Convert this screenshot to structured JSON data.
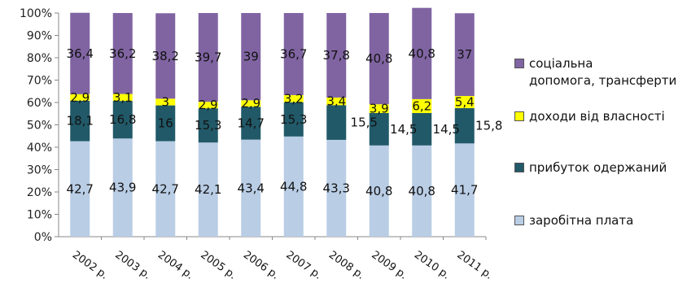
{
  "chart_data": {
    "type": "bar",
    "stacked": true,
    "percent_stacked": true,
    "categories": [
      "2002 р.",
      "2003 р.",
      "2004 р.",
      "2005 р.",
      "2006 р.",
      "2007 р.",
      "2008 р.",
      "2009 р.",
      "2010 р.",
      "2011 р."
    ],
    "series": [
      {
        "name": "заробітна плата",
        "color": "#b9cde5",
        "values": [
          42.7,
          43.9,
          42.7,
          42.1,
          43.4,
          44.8,
          43.3,
          40.8,
          40.8,
          41.7
        ]
      },
      {
        "name": "прибуток одержаний",
        "color": "#215968",
        "values": [
          18.1,
          16.8,
          16,
          15.3,
          14.7,
          15.3,
          15.5,
          14.5,
          14.5,
          15.8
        ]
      },
      {
        "name": "доходи від власності",
        "color": "#ffff00",
        "values": [
          2.9,
          3.1,
          3,
          2.9,
          2.9,
          3.2,
          3.4,
          3.9,
          6.2,
          5.4
        ]
      },
      {
        "name": "соціальна\nдопомога, трансферти",
        "color": "#8064a2",
        "values": [
          36.4,
          36.2,
          38.2,
          39.7,
          39,
          36.7,
          37.8,
          40.8,
          40.8,
          37
        ]
      }
    ],
    "value_labels": [
      [
        "42,7",
        "43,9",
        "42,7",
        "42,1",
        "43,4",
        "44,8",
        "43,3",
        "40,8",
        "40,8",
        "41,7"
      ],
      [
        "18,1",
        "16,8",
        "16",
        "15,3",
        "14,7",
        "15,3",
        "15,5",
        "14,5",
        "14,5",
        "15,8"
      ],
      [
        "2,9",
        "3,1",
        "3",
        "2,9",
        "2,9",
        "3,2",
        "3,4",
        "3,9",
        "6,2",
        "5,4"
      ],
      [
        "36,4",
        "36,2",
        "38,2",
        "39,7",
        "39",
        "36,7",
        "37,8",
        "40,8",
        "40,8",
        "37"
      ]
    ],
    "y_ticks": [
      "0%",
      "10%",
      "20%",
      "30%",
      "40%",
      "50%",
      "60%",
      "70%",
      "80%",
      "90%",
      "100%"
    ],
    "ylim": [
      0,
      100
    ],
    "grid": false,
    "legend_position": "right",
    "legend_order": [
      3,
      2,
      1,
      0
    ]
  }
}
